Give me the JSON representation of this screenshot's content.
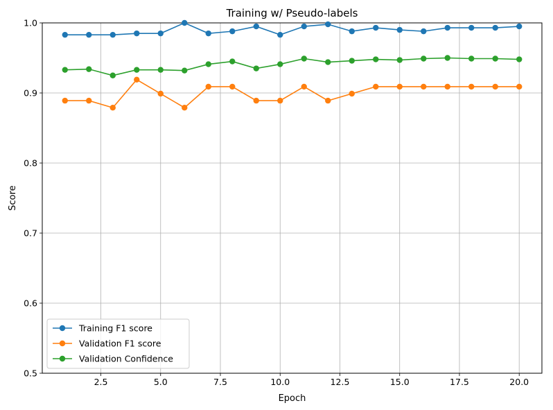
{
  "chart_data": {
    "type": "line",
    "title": "Training w/ Pseudo-labels",
    "xlabel": "Epoch",
    "ylabel": "Score",
    "xlim": [
      0.05,
      20.95
    ],
    "ylim": [
      0.5,
      1.0
    ],
    "xticks": [
      2.5,
      5.0,
      7.5,
      10.0,
      12.5,
      15.0,
      17.5,
      20.0
    ],
    "xtick_labels": [
      "2.5",
      "5.0",
      "7.5",
      "10.0",
      "12.5",
      "15.0",
      "17.5",
      "20.0"
    ],
    "yticks": [
      0.5,
      0.6,
      0.7,
      0.8,
      0.9,
      1.0
    ],
    "ytick_labels": [
      "0.5",
      "0.6",
      "0.7",
      "0.8",
      "0.9",
      "1.0"
    ],
    "grid": true,
    "legend_position": "lower-left",
    "x": [
      1,
      2,
      3,
      4,
      5,
      6,
      7,
      8,
      9,
      10,
      11,
      12,
      13,
      14,
      15,
      16,
      17,
      18,
      19,
      20
    ],
    "series": [
      {
        "name": "Training F1 score",
        "color": "#1f77b4",
        "values": [
          0.983,
          0.983,
          0.983,
          0.985,
          0.985,
          1.0,
          0.985,
          0.988,
          0.995,
          0.983,
          0.995,
          0.998,
          0.988,
          0.993,
          0.99,
          0.988,
          0.993,
          0.993,
          0.993,
          0.995
        ]
      },
      {
        "name": "Validation F1 score",
        "color": "#ff7f0e",
        "values": [
          0.889,
          0.889,
          0.879,
          0.919,
          0.899,
          0.879,
          0.909,
          0.909,
          0.889,
          0.889,
          0.909,
          0.889,
          0.899,
          0.909,
          0.909,
          0.909,
          0.909,
          0.909,
          0.909,
          0.909
        ]
      },
      {
        "name": "Validation Confidence",
        "color": "#2ca02c",
        "values": [
          0.933,
          0.934,
          0.925,
          0.933,
          0.933,
          0.932,
          0.941,
          0.945,
          0.935,
          0.941,
          0.949,
          0.944,
          0.946,
          0.948,
          0.947,
          0.949,
          0.95,
          0.949,
          0.949,
          0.948
        ]
      }
    ]
  }
}
